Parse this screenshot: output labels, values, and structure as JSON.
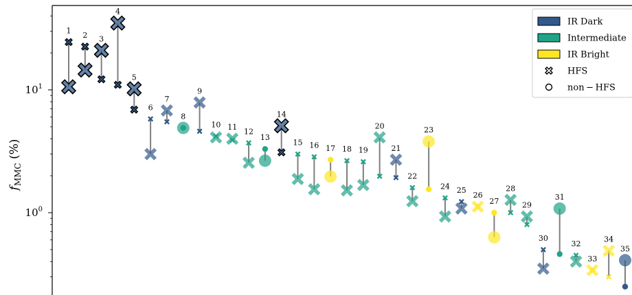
{
  "chart_data": {
    "type": "scatter",
    "title": "",
    "xlabel": "",
    "ylabel": "f",
    "ylabel_sub": "MMC",
    "ylabel_unit": " (%)",
    "yscale": "log",
    "ylim": [
      0.22,
      55
    ],
    "xlim": [
      -0.5,
      35.2
    ],
    "yticks": [
      {
        "base": "10",
        "exp": "1",
        "value": 10
      },
      {
        "base": "10",
        "exp": "0",
        "value": 1
      }
    ],
    "colors": {
      "IR Dark": "#31598a",
      "Intermediate": "#21a387",
      "IR Bright": "#fde725"
    },
    "legend": {
      "position": "top-right",
      "entries": [
        {
          "label": "IR Dark",
          "kind": "patch",
          "color": "#31598a"
        },
        {
          "label": "Intermediate",
          "kind": "patch",
          "color": "#21a387"
        },
        {
          "label": "IR Bright",
          "kind": "patch",
          "color": "#fde725"
        },
        {
          "label": "HFS",
          "kind": "marker",
          "marker": "x"
        },
        {
          "label": "non − HFS",
          "kind": "marker",
          "marker": "o"
        }
      ]
    },
    "points": [
      {
        "label": "1",
        "cls": "IR Dark",
        "hfs": true,
        "big": 10.6,
        "small": 24.5,
        "edge": true
      },
      {
        "label": "2",
        "cls": "IR Dark",
        "hfs": true,
        "big": 14.5,
        "small": 22.5,
        "edge": true
      },
      {
        "label": "3",
        "cls": "IR Dark",
        "hfs": true,
        "big": 21.0,
        "small": 12.2,
        "edge": true
      },
      {
        "label": "4",
        "cls": "IR Dark",
        "hfs": true,
        "big": 35.0,
        "small": 11.0,
        "edge": true
      },
      {
        "label": "5",
        "cls": "IR Dark",
        "hfs": true,
        "big": 10.2,
        "small": 6.9,
        "edge": true
      },
      {
        "label": "6",
        "cls": "IR Dark",
        "hfs": true,
        "big": 3.0,
        "small": 5.8,
        "edge": false
      },
      {
        "label": "7",
        "cls": "IR Dark",
        "hfs": true,
        "big": 6.8,
        "small": 5.5,
        "edge": false
      },
      {
        "label": "8",
        "cls": "Intermediate",
        "hfs": false,
        "big": 4.9,
        "small": 4.9,
        "edge": false
      },
      {
        "label": "9",
        "cls": "IR Dark",
        "hfs": true,
        "big": 7.9,
        "small": 4.6,
        "edge": false
      },
      {
        "label": "10",
        "cls": "Intermediate",
        "hfs": true,
        "big": 4.1,
        "small": 4.2,
        "edge": false
      },
      {
        "label": "11",
        "cls": "Intermediate",
        "hfs": true,
        "big": 4.0,
        "small": 3.9,
        "edge": false
      },
      {
        "label": "12",
        "cls": "Intermediate",
        "hfs": true,
        "big": 2.55,
        "small": 3.7,
        "edge": false
      },
      {
        "label": "13",
        "cls": "Intermediate",
        "hfs": false,
        "big": 2.65,
        "small": 3.3,
        "edge": false
      },
      {
        "label": "14",
        "cls": "IR Dark",
        "hfs": true,
        "big": 5.1,
        "small": 3.1,
        "edge": true
      },
      {
        "label": "15",
        "cls": "Intermediate",
        "hfs": true,
        "big": 1.88,
        "small": 3.0,
        "edge": false
      },
      {
        "label": "16",
        "cls": "Intermediate",
        "hfs": true,
        "big": 1.55,
        "small": 2.85,
        "edge": false
      },
      {
        "label": "17",
        "cls": "IR Bright",
        "hfs": false,
        "big": 1.97,
        "small": 2.7,
        "edge": false
      },
      {
        "label": "18",
        "cls": "Intermediate",
        "hfs": true,
        "big": 1.52,
        "small": 2.65,
        "edge": false
      },
      {
        "label": "19",
        "cls": "Intermediate",
        "hfs": true,
        "big": 1.68,
        "small": 2.6,
        "edge": false
      },
      {
        "label": "20",
        "cls": "Intermediate",
        "hfs": true,
        "big": 4.1,
        "small": 1.98,
        "edge": false
      },
      {
        "label": "21",
        "cls": "IR Dark",
        "hfs": true,
        "big": 2.7,
        "small": 1.93,
        "edge": false
      },
      {
        "label": "22",
        "cls": "Intermediate",
        "hfs": true,
        "big": 1.24,
        "small": 1.6,
        "edge": false
      },
      {
        "label": "23",
        "cls": "IR Bright",
        "hfs": false,
        "big": 3.8,
        "small": 1.55,
        "edge": false
      },
      {
        "label": "24",
        "cls": "Intermediate",
        "hfs": true,
        "big": 0.93,
        "small": 1.32,
        "edge": false
      },
      {
        "label": "25",
        "cls": "IR Dark",
        "hfs": true,
        "big": 1.08,
        "small": 1.23,
        "edge": false
      },
      {
        "label": "26",
        "cls": "IR Bright",
        "hfs": true,
        "big": 1.12,
        "small": 1.12,
        "edge": false
      },
      {
        "label": "27",
        "cls": "IR Bright",
        "hfs": false,
        "big": 0.63,
        "small": 1.0,
        "edge": false
      },
      {
        "label": "28",
        "cls": "Intermediate",
        "hfs": true,
        "big": 1.27,
        "small": 1.0,
        "edge": false
      },
      {
        "label": "29",
        "cls": "Intermediate",
        "hfs": true,
        "big": 0.93,
        "small": 0.8,
        "edge": false
      },
      {
        "label": "30",
        "cls": "IR Dark",
        "hfs": true,
        "big": 0.35,
        "small": 0.5,
        "edge": false
      },
      {
        "label": "31",
        "cls": "Intermediate",
        "hfs": false,
        "big": 1.08,
        "small": 0.46,
        "edge": false
      },
      {
        "label": "32",
        "cls": "Intermediate",
        "hfs": true,
        "big": 0.4,
        "small": 0.45,
        "edge": false
      },
      {
        "label": "33",
        "cls": "IR Bright",
        "hfs": true,
        "big": 0.34,
        "small": 0.34,
        "edge": false
      },
      {
        "label": "34",
        "cls": "IR Bright",
        "hfs": true,
        "big": 0.49,
        "small": 0.3,
        "edge": false
      },
      {
        "label": "35",
        "cls": "IR Dark",
        "hfs": false,
        "big": 0.41,
        "small": 0.25,
        "edge": false
      }
    ]
  }
}
